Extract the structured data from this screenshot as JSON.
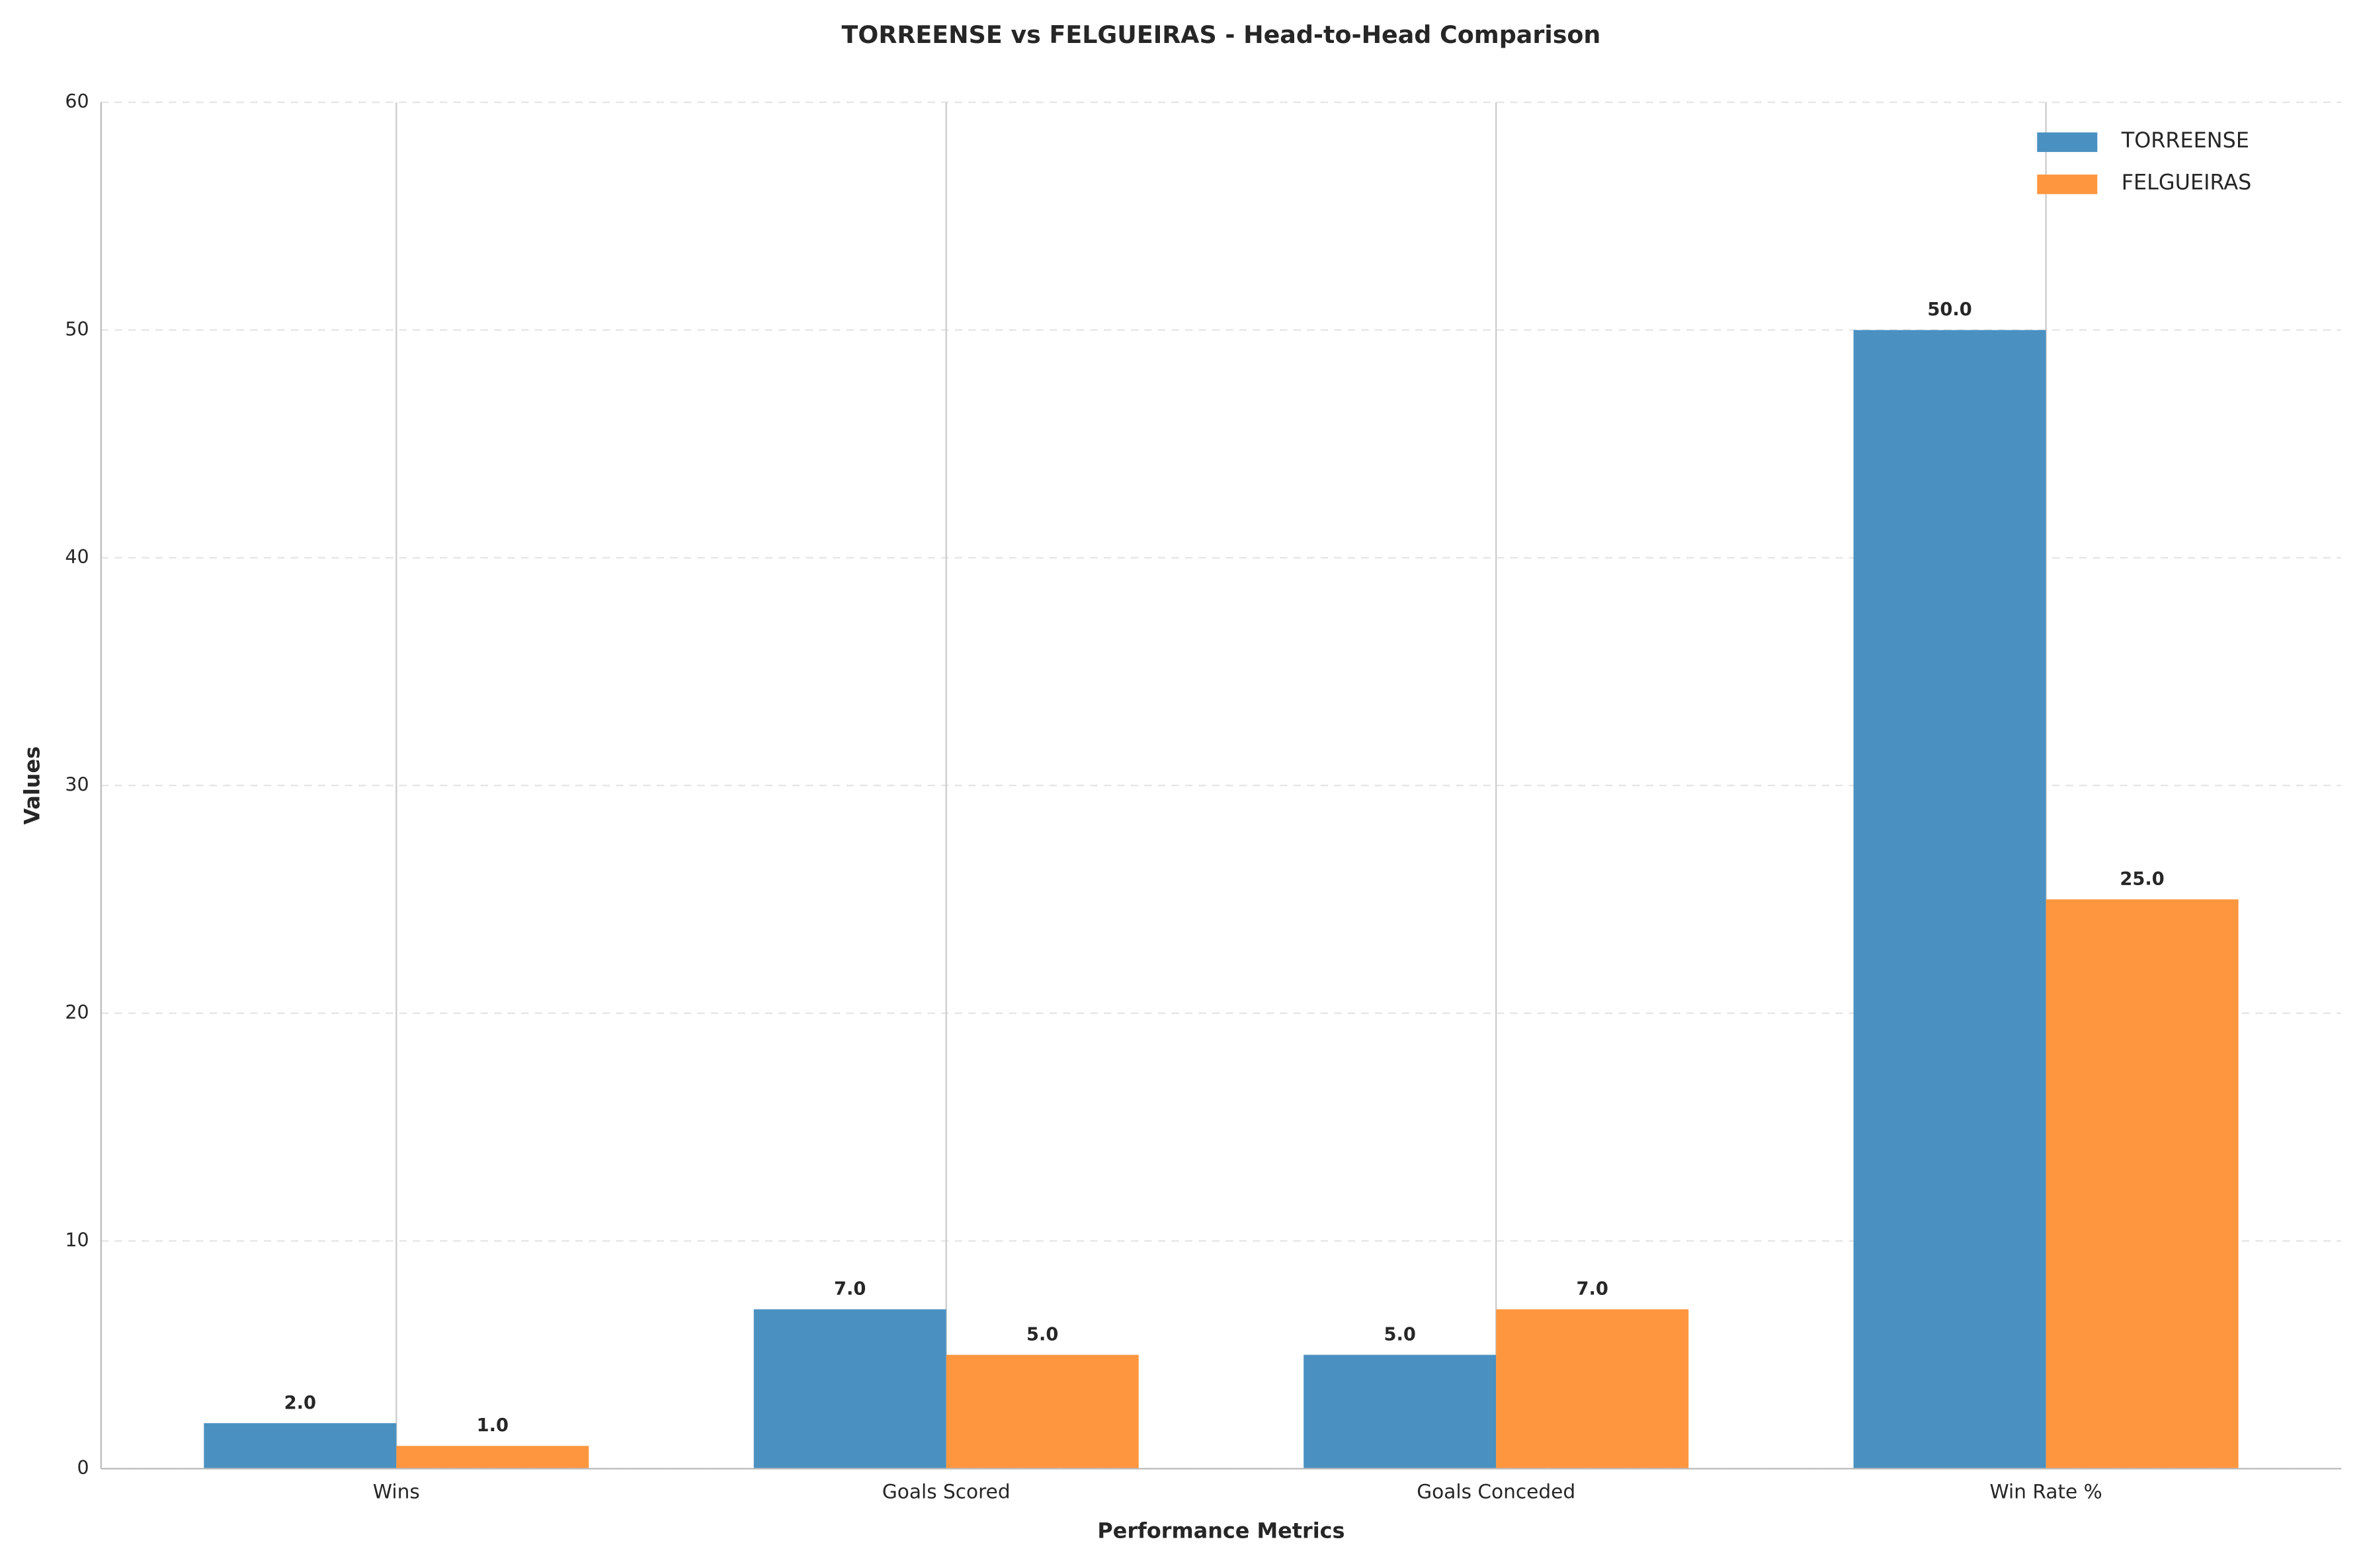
{
  "chart_data": {
    "type": "bar",
    "title": "TORREENSE vs FELGUEIRAS - Head-to-Head Comparison",
    "x_label": "Performance Metrics",
    "y_label": "Values",
    "categories": [
      "Wins",
      "Goals Scored",
      "Goals Conceded",
      "Win Rate %"
    ],
    "series": [
      {
        "name": "TORREENSE",
        "color": "#4a91c2",
        "values": [
          2,
          7,
          5,
          50
        ],
        "value_labels": [
          "2.0",
          "7.0",
          "5.0",
          "50.0"
        ]
      },
      {
        "name": "FELGUEIRAS",
        "color": "#fe963f",
        "values": [
          1,
          5,
          7,
          25
        ],
        "value_labels": [
          "1.0",
          "5.0",
          "7.0",
          "25.0"
        ]
      }
    ],
    "ylim": [
      0,
      60
    ],
    "yticks": [
      0,
      10,
      20,
      30,
      40,
      50,
      60
    ],
    "grid": true,
    "legend": "upper right"
  }
}
